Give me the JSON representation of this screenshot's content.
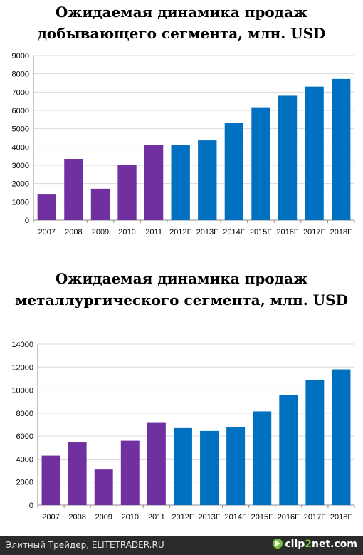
{
  "titles": {
    "chart1": "Ожидаемая динамика продаж добывающего сегмента, млн. USD",
    "chart2": "Ожидаемая динамика продаж металлургического сегмента, млн. USD"
  },
  "colors": {
    "actual": "#7030a0",
    "forecast": "#0070c0",
    "grid": "#d9d9d9",
    "axis": "#8c8c8c"
  },
  "chart_data": [
    {
      "type": "bar",
      "title": "Ожидаемая динамика продаж добывающего сегмента, млн. USD",
      "categories": [
        "2007",
        "2008",
        "2009",
        "2010",
        "2011",
        "2012F",
        "2013F",
        "2014F",
        "2015F",
        "2016F",
        "2017F",
        "2018F"
      ],
      "values": [
        1400,
        3350,
        1720,
        3030,
        4130,
        4090,
        4360,
        5330,
        6170,
        6800,
        7300,
        7720
      ],
      "ylim": [
        0,
        9000
      ],
      "yticks": [
        0,
        1000,
        2000,
        3000,
        4000,
        5000,
        6000,
        7000,
        8000,
        9000
      ],
      "grid": true,
      "actual_count": 5
    },
    {
      "type": "bar",
      "title": "Ожидаемая динамика продаж металлургического сегмента, млн. USD",
      "categories": [
        "2007",
        "2008",
        "2009",
        "2010",
        "2011",
        "2012F",
        "2013F",
        "2014F",
        "2015F",
        "2016F",
        "2017F",
        "2018F"
      ],
      "values": [
        4300,
        5450,
        3150,
        5600,
        7150,
        6700,
        6450,
        6800,
        8150,
        9600,
        10900,
        11800
      ],
      "ylim": [
        0,
        14000
      ],
      "yticks": [
        0,
        2000,
        4000,
        6000,
        8000,
        10000,
        12000,
        14000
      ],
      "grid": true,
      "actual_count": 5
    }
  ],
  "footer": {
    "source": "Элитный Трейдер, ELITETRADER.RU",
    "logo_part1": "clip",
    "logo_part2": "2",
    "logo_part3": "net.com"
  }
}
